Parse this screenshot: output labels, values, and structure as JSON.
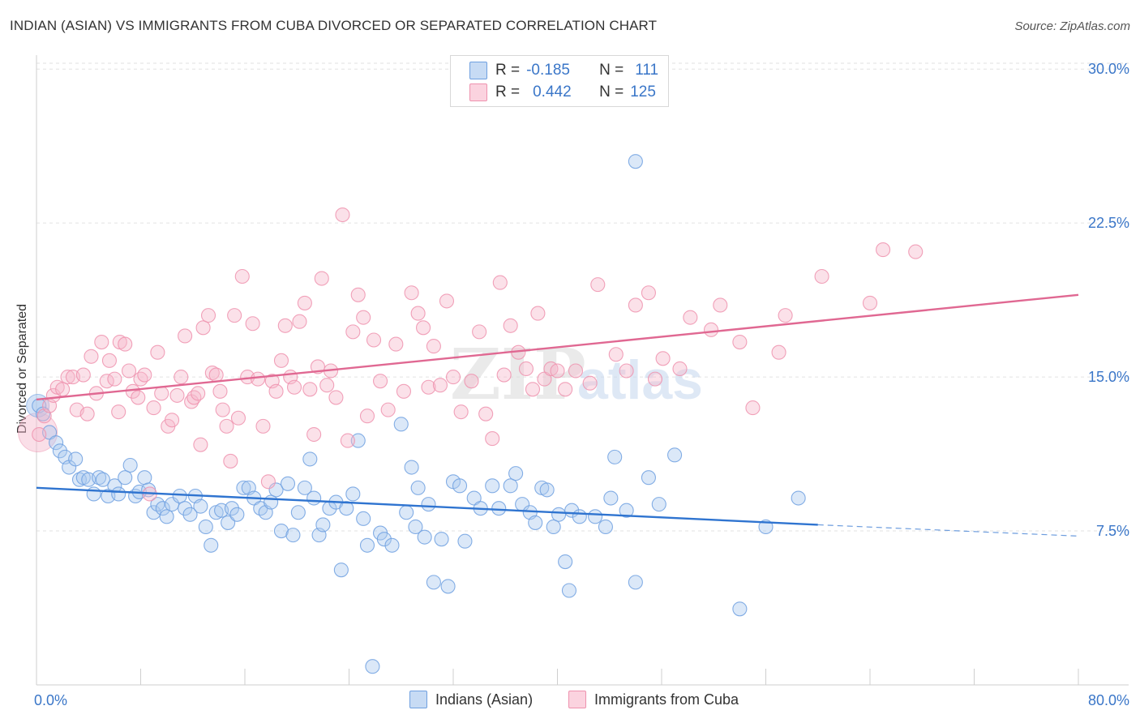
{
  "header": {
    "title": "INDIAN (ASIAN) VS IMMIGRANTS FROM CUBA DIVORCED OR SEPARATED CORRELATION CHART",
    "source": "Source: ZipAtlas.com"
  },
  "legend_box": {
    "rows": [
      {
        "r_label": "R =",
        "r_value": "-0.185",
        "n_label": "N =",
        "n_value": "111",
        "color": "#a9c7ef"
      },
      {
        "r_label": "R =",
        "r_value": "0.442",
        "n_label": "N =",
        "n_value": "125",
        "color": "#f5b8cb"
      }
    ]
  },
  "watermark": {
    "zip": "ZIP",
    "atlas": "atlas"
  },
  "chart_data": {
    "type": "scatter",
    "title": "INDIAN (ASIAN) VS IMMIGRANTS FROM CUBA DIVORCED OR SEPARATED CORRELATION CHART",
    "xlabel": "",
    "ylabel": "Divorced or Separated",
    "xlim": [
      0,
      80
    ],
    "ylim": [
      0,
      30.6
    ],
    "x_tick_labels": [
      "0.0%",
      "80.0%"
    ],
    "y_ticks": [
      7.5,
      15.0,
      22.5,
      30.0
    ],
    "y_tick_labels": [
      "7.5%",
      "15.0%",
      "22.5%",
      "30.0%"
    ],
    "grid": true,
    "legend_placement": "bottom",
    "series": [
      {
        "name": "Indians (Asian)",
        "color": "#6fa0e0",
        "fill": "#a9c7ef",
        "line_color": "#2f74d0",
        "trend": {
          "x0": 0,
          "y0": 9.6,
          "x1": 60,
          "y1": 7.8,
          "dash_to_x": 80,
          "dash_to_y": 7.25
        },
        "points": [
          [
            0.2,
            13.6
          ],
          [
            0.5,
            13.2
          ],
          [
            1.0,
            12.3
          ],
          [
            1.5,
            11.8
          ],
          [
            1.8,
            11.4
          ],
          [
            2.2,
            11.1
          ],
          [
            2.5,
            10.6
          ],
          [
            3.0,
            11.0
          ],
          [
            3.3,
            10.0
          ],
          [
            3.6,
            10.1
          ],
          [
            4.0,
            10.0
          ],
          [
            4.4,
            9.3
          ],
          [
            4.8,
            10.1
          ],
          [
            5.1,
            10.0
          ],
          [
            5.5,
            9.2
          ],
          [
            6.0,
            9.7
          ],
          [
            6.3,
            9.3
          ],
          [
            6.8,
            10.1
          ],
          [
            7.2,
            10.7
          ],
          [
            7.6,
            9.2
          ],
          [
            7.9,
            9.4
          ],
          [
            8.3,
            10.1
          ],
          [
            8.6,
            9.5
          ],
          [
            9.0,
            8.4
          ],
          [
            9.3,
            8.8
          ],
          [
            9.7,
            8.6
          ],
          [
            10.0,
            8.2
          ],
          [
            10.4,
            8.8
          ],
          [
            11.0,
            9.2
          ],
          [
            11.4,
            8.6
          ],
          [
            11.8,
            8.3
          ],
          [
            12.2,
            9.2
          ],
          [
            12.6,
            8.7
          ],
          [
            13.0,
            7.7
          ],
          [
            13.4,
            6.8
          ],
          [
            13.8,
            8.4
          ],
          [
            14.2,
            8.5
          ],
          [
            14.7,
            7.9
          ],
          [
            15.0,
            8.6
          ],
          [
            15.4,
            8.3
          ],
          [
            15.9,
            9.6
          ],
          [
            16.3,
            9.6
          ],
          [
            16.7,
            9.1
          ],
          [
            17.2,
            8.6
          ],
          [
            17.6,
            8.4
          ],
          [
            18.0,
            8.9
          ],
          [
            18.4,
            9.5
          ],
          [
            18.8,
            7.5
          ],
          [
            19.3,
            9.8
          ],
          [
            19.7,
            7.3
          ],
          [
            20.1,
            8.4
          ],
          [
            20.6,
            9.6
          ],
          [
            21.0,
            11.0
          ],
          [
            21.3,
            9.1
          ],
          [
            21.7,
            7.3
          ],
          [
            22.0,
            7.8
          ],
          [
            22.5,
            8.6
          ],
          [
            23.0,
            8.9
          ],
          [
            23.4,
            5.6
          ],
          [
            23.8,
            8.6
          ],
          [
            24.3,
            9.3
          ],
          [
            24.7,
            11.9
          ],
          [
            25.1,
            8.1
          ],
          [
            25.4,
            6.8
          ],
          [
            25.8,
            0.9
          ],
          [
            26.4,
            7.4
          ],
          [
            26.7,
            7.1
          ],
          [
            27.3,
            6.8
          ],
          [
            28.0,
            12.7
          ],
          [
            28.4,
            8.4
          ],
          [
            28.8,
            10.6
          ],
          [
            29.1,
            7.7
          ],
          [
            29.8,
            7.2
          ],
          [
            29.3,
            9.6
          ],
          [
            30.1,
            8.8
          ],
          [
            30.5,
            5.0
          ],
          [
            31.1,
            7.1
          ],
          [
            31.6,
            4.8
          ],
          [
            32.0,
            9.9
          ],
          [
            32.5,
            9.7
          ],
          [
            32.9,
            7.0
          ],
          [
            33.6,
            9.1
          ],
          [
            34.1,
            8.6
          ],
          [
            35.0,
            9.7
          ],
          [
            35.5,
            8.6
          ],
          [
            36.4,
            9.7
          ],
          [
            36.8,
            10.3
          ],
          [
            37.3,
            8.8
          ],
          [
            37.9,
            8.4
          ],
          [
            38.3,
            7.9
          ],
          [
            38.8,
            9.6
          ],
          [
            39.2,
            9.5
          ],
          [
            39.7,
            7.7
          ],
          [
            40.1,
            8.3
          ],
          [
            40.6,
            6.0
          ],
          [
            40.9,
            4.6
          ],
          [
            41.1,
            8.5
          ],
          [
            41.7,
            8.2
          ],
          [
            42.9,
            8.2
          ],
          [
            43.7,
            7.7
          ],
          [
            44.1,
            9.1
          ],
          [
            44.4,
            11.1
          ],
          [
            45.3,
            8.5
          ],
          [
            46.0,
            25.5
          ],
          [
            46.0,
            5.0
          ],
          [
            47.0,
            10.1
          ],
          [
            47.8,
            8.8
          ],
          [
            49.0,
            11.2
          ],
          [
            54.0,
            3.7
          ],
          [
            56.0,
            7.7
          ],
          [
            58.5,
            9.1
          ]
        ]
      },
      {
        "name": "Immigrants from Cuba",
        "color": "#ee92ae",
        "fill": "#f5b8cb",
        "line_color": "#e06892",
        "trend": {
          "x0": 0,
          "y0": 13.9,
          "x1": 80,
          "y1": 19.0
        },
        "points": [
          [
            0.2,
            12.2
          ],
          [
            0.6,
            13.1
          ],
          [
            1.0,
            13.6
          ],
          [
            1.3,
            14.1
          ],
          [
            1.6,
            14.5
          ],
          [
            2.0,
            14.4
          ],
          [
            2.4,
            15.0
          ],
          [
            2.8,
            15.0
          ],
          [
            3.1,
            13.4
          ],
          [
            3.6,
            15.1
          ],
          [
            3.9,
            13.2
          ],
          [
            4.2,
            16.0
          ],
          [
            4.6,
            14.2
          ],
          [
            5.0,
            16.7
          ],
          [
            5.4,
            14.8
          ],
          [
            5.6,
            15.8
          ],
          [
            6.0,
            14.9
          ],
          [
            6.3,
            13.3
          ],
          [
            6.4,
            16.7
          ],
          [
            6.8,
            16.6
          ],
          [
            7.1,
            15.3
          ],
          [
            7.4,
            14.3
          ],
          [
            7.8,
            14.0
          ],
          [
            8.0,
            14.9
          ],
          [
            8.3,
            15.1
          ],
          [
            8.7,
            9.3
          ],
          [
            9.0,
            13.5
          ],
          [
            9.3,
            16.2
          ],
          [
            9.6,
            14.2
          ],
          [
            10.1,
            12.6
          ],
          [
            10.4,
            12.9
          ],
          [
            10.8,
            14.1
          ],
          [
            11.1,
            15.0
          ],
          [
            11.4,
            17.0
          ],
          [
            11.9,
            13.8
          ],
          [
            12.1,
            14.0
          ],
          [
            12.4,
            14.2
          ],
          [
            12.6,
            11.7
          ],
          [
            12.8,
            17.4
          ],
          [
            13.2,
            18.0
          ],
          [
            13.5,
            15.2
          ],
          [
            13.8,
            15.1
          ],
          [
            14.1,
            14.3
          ],
          [
            14.3,
            13.4
          ],
          [
            14.6,
            12.6
          ],
          [
            14.9,
            10.9
          ],
          [
            15.2,
            18.0
          ],
          [
            15.5,
            13.0
          ],
          [
            15.8,
            19.9
          ],
          [
            16.2,
            15.0
          ],
          [
            16.6,
            17.6
          ],
          [
            17.0,
            14.9
          ],
          [
            17.4,
            12.6
          ],
          [
            17.8,
            9.9
          ],
          [
            18.1,
            14.8
          ],
          [
            18.4,
            14.3
          ],
          [
            18.8,
            15.8
          ],
          [
            19.1,
            17.5
          ],
          [
            19.5,
            15.0
          ],
          [
            19.8,
            14.5
          ],
          [
            20.2,
            17.7
          ],
          [
            20.6,
            18.6
          ],
          [
            21.0,
            14.4
          ],
          [
            21.3,
            12.2
          ],
          [
            21.6,
            15.5
          ],
          [
            21.9,
            19.8
          ],
          [
            22.3,
            14.6
          ],
          [
            22.6,
            15.3
          ],
          [
            23.0,
            14.0
          ],
          [
            23.5,
            22.9
          ],
          [
            23.9,
            11.9
          ],
          [
            24.3,
            17.2
          ],
          [
            24.7,
            19.0
          ],
          [
            25.1,
            17.9
          ],
          [
            25.4,
            13.1
          ],
          [
            25.9,
            16.8
          ],
          [
            26.4,
            14.8
          ],
          [
            27.0,
            13.4
          ],
          [
            27.6,
            16.6
          ],
          [
            28.2,
            14.3
          ],
          [
            28.8,
            19.1
          ],
          [
            29.3,
            18.1
          ],
          [
            29.7,
            17.4
          ],
          [
            30.1,
            14.5
          ],
          [
            30.5,
            16.5
          ],
          [
            31.0,
            14.6
          ],
          [
            31.5,
            18.7
          ],
          [
            32.0,
            15.0
          ],
          [
            32.6,
            13.3
          ],
          [
            33.4,
            14.8
          ],
          [
            34.0,
            17.2
          ],
          [
            34.5,
            13.2
          ],
          [
            35.0,
            12.0
          ],
          [
            35.6,
            19.6
          ],
          [
            35.9,
            15.1
          ],
          [
            36.4,
            17.5
          ],
          [
            37.0,
            16.2
          ],
          [
            37.6,
            15.4
          ],
          [
            38.1,
            14.4
          ],
          [
            38.5,
            18.1
          ],
          [
            39.0,
            14.9
          ],
          [
            39.5,
            15.4
          ],
          [
            40.0,
            15.3
          ],
          [
            40.6,
            14.4
          ],
          [
            41.4,
            15.3
          ],
          [
            42.5,
            14.7
          ],
          [
            43.1,
            19.5
          ],
          [
            44.5,
            16.1
          ],
          [
            45.3,
            15.3
          ],
          [
            46.0,
            18.5
          ],
          [
            47.0,
            19.1
          ],
          [
            47.5,
            14.9
          ],
          [
            48.1,
            15.9
          ],
          [
            49.4,
            15.4
          ],
          [
            50.2,
            17.9
          ],
          [
            51.8,
            17.3
          ],
          [
            52.5,
            18.5
          ],
          [
            54.0,
            16.7
          ],
          [
            55.0,
            13.5
          ],
          [
            57.0,
            16.2
          ],
          [
            57.5,
            18.0
          ],
          [
            60.3,
            19.9
          ],
          [
            64.0,
            18.6
          ],
          [
            65.0,
            21.2
          ],
          [
            67.5,
            21.1
          ]
        ]
      }
    ]
  },
  "bottom_legend": {
    "items": [
      {
        "label": "Indians (Asian)",
        "color": "#a9c7ef"
      },
      {
        "label": "Immigrants from Cuba",
        "color": "#f5b8cb"
      }
    ]
  }
}
